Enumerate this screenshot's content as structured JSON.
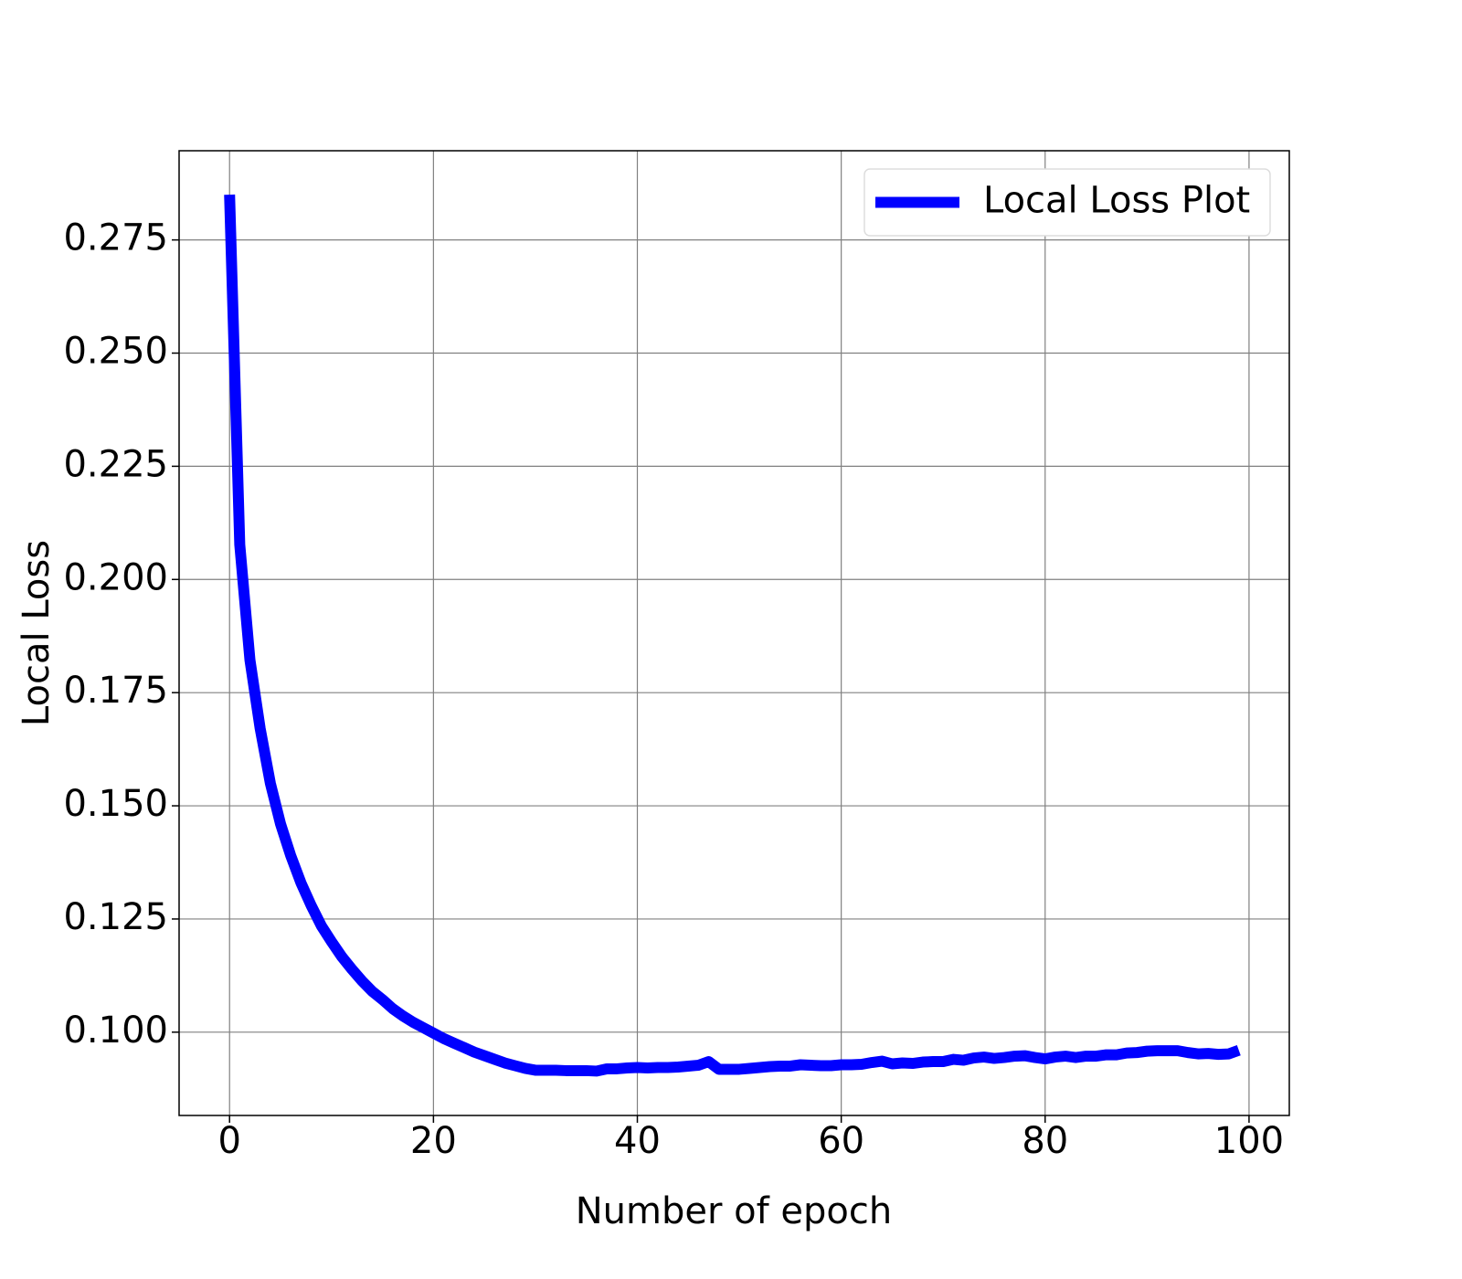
{
  "chart_data": {
    "type": "line",
    "xlabel": "Number of epoch",
    "ylabel": "Local Loss",
    "x": [
      0,
      1,
      2,
      3,
      4,
      5,
      6,
      7,
      8,
      9,
      10,
      11,
      12,
      13,
      14,
      15,
      16,
      17,
      18,
      19,
      20,
      21,
      22,
      23,
      24,
      25,
      26,
      27,
      28,
      29,
      30,
      31,
      32,
      33,
      34,
      35,
      36,
      37,
      38,
      39,
      40,
      41,
      42,
      43,
      44,
      45,
      46,
      47,
      48,
      49,
      50,
      51,
      52,
      53,
      54,
      55,
      56,
      57,
      58,
      59,
      60,
      61,
      62,
      63,
      64,
      65,
      66,
      67,
      68,
      69,
      70,
      71,
      72,
      73,
      74,
      75,
      76,
      77,
      78,
      79,
      80,
      81,
      82,
      83,
      84,
      85,
      86,
      87,
      88,
      89,
      90,
      91,
      92,
      93,
      94,
      95,
      96,
      97,
      98,
      99
    ],
    "series": [
      {
        "name": "Local Loss Plot",
        "color": "#0000ff",
        "values": [
          0.285,
          0.2077,
          0.1822,
          0.1671,
          0.155,
          0.146,
          0.139,
          0.133,
          0.128,
          0.1235,
          0.12,
          0.1167,
          0.1139,
          0.1113,
          0.109,
          0.1072,
          0.1052,
          0.1036,
          0.1022,
          0.101,
          0.0998,
          0.0986,
          0.0976,
          0.0966,
          0.0956,
          0.0948,
          0.094,
          0.0932,
          0.0926,
          0.092,
          0.0916,
          0.0916,
          0.0916,
          0.0915,
          0.0915,
          0.0915,
          0.0914,
          0.0919,
          0.0919,
          0.0921,
          0.0922,
          0.0921,
          0.0922,
          0.0922,
          0.0923,
          0.0925,
          0.0927,
          0.0935,
          0.0918,
          0.0918,
          0.0918,
          0.092,
          0.0922,
          0.0924,
          0.0925,
          0.0925,
          0.0928,
          0.0927,
          0.0926,
          0.0926,
          0.0928,
          0.0928,
          0.0929,
          0.0933,
          0.0936,
          0.093,
          0.0932,
          0.0931,
          0.0934,
          0.0935,
          0.0935,
          0.094,
          0.0938,
          0.0943,
          0.0945,
          0.0942,
          0.0944,
          0.0947,
          0.0948,
          0.0944,
          0.0941,
          0.0945,
          0.0947,
          0.0944,
          0.0947,
          0.0947,
          0.095,
          0.095,
          0.0954,
          0.0955,
          0.0958,
          0.0959,
          0.0959,
          0.0959,
          0.0955,
          0.0952,
          0.0953,
          0.0951,
          0.0952,
          0.096
        ]
      }
    ],
    "xlim": [
      -4.95,
      103.95
    ],
    "xticks": [
      0,
      20,
      40,
      60,
      80,
      100
    ],
    "ylim": [
      0.0816,
      0.2947
    ],
    "yticks": [
      {
        "value": 0.1,
        "label": "0.100"
      },
      {
        "value": 0.125,
        "label": "0.125"
      },
      {
        "value": 0.15,
        "label": "0.150"
      },
      {
        "value": 0.175,
        "label": "0.175"
      },
      {
        "value": 0.2,
        "label": "0.200"
      },
      {
        "value": 0.225,
        "label": "0.225"
      },
      {
        "value": 0.25,
        "label": "0.250"
      },
      {
        "value": 0.275,
        "label": "0.275"
      }
    ],
    "grid": true,
    "legend": "upper right"
  }
}
